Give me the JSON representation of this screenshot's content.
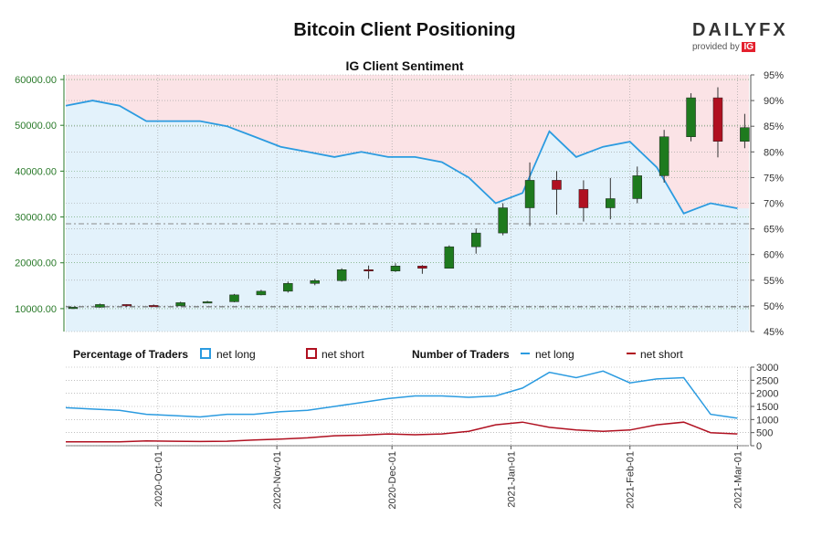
{
  "title": "Bitcoin Client Positioning",
  "subtitle": "IG Client Sentiment",
  "logo": {
    "word_left": "DAILY",
    "word_right": "FX",
    "provided_by": "provided by",
    "brand": "IG"
  },
  "colors": {
    "net_long": "#2b9be0",
    "net_short": "#b01020",
    "long_fill": "#e3f2fb",
    "short_fill": "#fbe3e6",
    "price_axis": "#2a7a2a",
    "candle_up": "#1e7a1e",
    "candle_down": "#b01020"
  },
  "legend": {
    "pct_heading": "Percentage of Traders",
    "pct_long": "net long",
    "pct_short": "net short",
    "num_heading": "Number of Traders",
    "num_long": "net long",
    "num_short": "net short"
  },
  "chart_data": [
    {
      "type": "candlestick",
      "name": "price",
      "x_tick_labels": [
        "2020-Oct-01",
        "2020-Nov-01",
        "2020-Dec-01",
        "2021-Jan-01",
        "2021-Feb-01",
        "2021-Mar-01"
      ],
      "x_range": [
        "2020-09-07",
        "2021-03-04"
      ],
      "left_axis": {
        "ticks": [
          "10000.00",
          "20000.00",
          "30000.00",
          "40000.00",
          "50000.00",
          "60000.00"
        ],
        "ylim": [
          5000,
          61000
        ]
      },
      "right_axis": {
        "ticks": [
          "45%",
          "50%",
          "55%",
          "60%",
          "65%",
          "70%",
          "75%",
          "80%",
          "85%",
          "90%",
          "95%"
        ],
        "ylim": [
          45,
          95
        ]
      },
      "reference_lines": {
        "price_level": 10400,
        "sentiment_level": 66
      },
      "candles": [
        {
          "date": "2020-09-07",
          "o": 10200,
          "h": 10400,
          "l": 9900,
          "c": 10300
        },
        {
          "date": "2020-09-14",
          "o": 10300,
          "h": 11100,
          "l": 10200,
          "c": 10900
        },
        {
          "date": "2020-09-21",
          "o": 10900,
          "h": 10950,
          "l": 10400,
          "c": 10700
        },
        {
          "date": "2020-09-28",
          "o": 10700,
          "h": 10900,
          "l": 10500,
          "c": 10600
        },
        {
          "date": "2020-10-05",
          "o": 10600,
          "h": 11500,
          "l": 10550,
          "c": 11300
        },
        {
          "date": "2020-10-12",
          "o": 11300,
          "h": 11700,
          "l": 11200,
          "c": 11500
        },
        {
          "date": "2020-10-19",
          "o": 11500,
          "h": 13200,
          "l": 11400,
          "c": 13000
        },
        {
          "date": "2020-10-26",
          "o": 13000,
          "h": 14100,
          "l": 12900,
          "c": 13800
        },
        {
          "date": "2020-11-02",
          "o": 13800,
          "h": 15900,
          "l": 13500,
          "c": 15500
        },
        {
          "date": "2020-11-09",
          "o": 15500,
          "h": 16500,
          "l": 15100,
          "c": 16100
        },
        {
          "date": "2020-11-16",
          "o": 16100,
          "h": 18800,
          "l": 15900,
          "c": 18500
        },
        {
          "date": "2020-11-23",
          "o": 18500,
          "h": 19400,
          "l": 16500,
          "c": 18200
        },
        {
          "date": "2020-11-30",
          "o": 18200,
          "h": 19900,
          "l": 18000,
          "c": 19300
        },
        {
          "date": "2020-12-07",
          "o": 19300,
          "h": 19500,
          "l": 17600,
          "c": 18800
        },
        {
          "date": "2020-12-14",
          "o": 18800,
          "h": 23800,
          "l": 18800,
          "c": 23500
        },
        {
          "date": "2020-12-21",
          "o": 23500,
          "h": 27500,
          "l": 22000,
          "c": 26500
        },
        {
          "date": "2020-12-28",
          "o": 26500,
          "h": 33000,
          "l": 26000,
          "c": 32000
        },
        {
          "date": "2021-01-04",
          "o": 32000,
          "h": 41900,
          "l": 28000,
          "c": 38000
        },
        {
          "date": "2021-01-11",
          "o": 38000,
          "h": 40000,
          "l": 30500,
          "c": 36000
        },
        {
          "date": "2021-01-18",
          "o": 36000,
          "h": 38000,
          "l": 29000,
          "c": 32000
        },
        {
          "date": "2021-01-25",
          "o": 32000,
          "h": 38500,
          "l": 29500,
          "c": 34000
        },
        {
          "date": "2021-02-01",
          "o": 34000,
          "h": 41000,
          "l": 33000,
          "c": 39000
        },
        {
          "date": "2021-02-08",
          "o": 39000,
          "h": 49000,
          "l": 37500,
          "c": 47500
        },
        {
          "date": "2021-02-15",
          "o": 47500,
          "h": 57000,
          "l": 46500,
          "c": 56000
        },
        {
          "date": "2021-02-22",
          "o": 56000,
          "h": 58300,
          "l": 43000,
          "c": 46500
        },
        {
          "date": "2021-03-01",
          "o": 46500,
          "h": 52500,
          "l": 45000,
          "c": 49500
        }
      ],
      "net_long_pct": [
        {
          "date": "2020-09-07",
          "v": 89
        },
        {
          "date": "2020-09-14",
          "v": 90
        },
        {
          "date": "2020-09-21",
          "v": 89
        },
        {
          "date": "2020-09-28",
          "v": 86
        },
        {
          "date": "2020-10-05",
          "v": 86
        },
        {
          "date": "2020-10-12",
          "v": 86
        },
        {
          "date": "2020-10-19",
          "v": 85
        },
        {
          "date": "2020-10-26",
          "v": 83
        },
        {
          "date": "2020-11-02",
          "v": 81
        },
        {
          "date": "2020-11-09",
          "v": 80
        },
        {
          "date": "2020-11-16",
          "v": 79
        },
        {
          "date": "2020-11-23",
          "v": 80
        },
        {
          "date": "2020-11-30",
          "v": 79
        },
        {
          "date": "2020-12-07",
          "v": 79
        },
        {
          "date": "2020-12-14",
          "v": 78
        },
        {
          "date": "2020-12-21",
          "v": 75
        },
        {
          "date": "2020-12-28",
          "v": 70
        },
        {
          "date": "2021-01-04",
          "v": 72
        },
        {
          "date": "2021-01-11",
          "v": 84
        },
        {
          "date": "2021-01-18",
          "v": 79
        },
        {
          "date": "2021-01-25",
          "v": 81
        },
        {
          "date": "2021-02-01",
          "v": 82
        },
        {
          "date": "2021-02-08",
          "v": 77
        },
        {
          "date": "2021-02-15",
          "v": 68
        },
        {
          "date": "2021-02-22",
          "v": 70
        },
        {
          "date": "2021-03-01",
          "v": 69
        }
      ]
    },
    {
      "type": "line",
      "name": "number_of_traders",
      "x_tick_labels": [
        "2020-Oct-01",
        "2020-Nov-01",
        "2020-Dec-01",
        "2021-Jan-01",
        "2021-Feb-01",
        "2021-Mar-01"
      ],
      "y_ticks": [
        "0",
        "500",
        "1000",
        "1500",
        "2000",
        "2500",
        "3000"
      ],
      "ylim": [
        0,
        3000
      ],
      "series": [
        {
          "name": "net long",
          "values": [
            {
              "date": "2020-09-07",
              "v": 1450
            },
            {
              "date": "2020-09-14",
              "v": 1400
            },
            {
              "date": "2020-09-21",
              "v": 1350
            },
            {
              "date": "2020-09-28",
              "v": 1200
            },
            {
              "date": "2020-10-05",
              "v": 1150
            },
            {
              "date": "2020-10-12",
              "v": 1100
            },
            {
              "date": "2020-10-19",
              "v": 1200
            },
            {
              "date": "2020-10-26",
              "v": 1200
            },
            {
              "date": "2020-11-02",
              "v": 1300
            },
            {
              "date": "2020-11-09",
              "v": 1350
            },
            {
              "date": "2020-11-16",
              "v": 1500
            },
            {
              "date": "2020-11-23",
              "v": 1650
            },
            {
              "date": "2020-11-30",
              "v": 1800
            },
            {
              "date": "2020-12-07",
              "v": 1900
            },
            {
              "date": "2020-12-14",
              "v": 1900
            },
            {
              "date": "2020-12-21",
              "v": 1850
            },
            {
              "date": "2020-12-28",
              "v": 1900
            },
            {
              "date": "2021-01-04",
              "v": 2200
            },
            {
              "date": "2021-01-11",
              "v": 2800
            },
            {
              "date": "2021-01-18",
              "v": 2600
            },
            {
              "date": "2021-01-25",
              "v": 2850
            },
            {
              "date": "2021-02-01",
              "v": 2400
            },
            {
              "date": "2021-02-08",
              "v": 2550
            },
            {
              "date": "2021-02-15",
              "v": 2600
            },
            {
              "date": "2021-02-22",
              "v": 1200
            },
            {
              "date": "2021-03-01",
              "v": 1050
            }
          ]
        },
        {
          "name": "net short",
          "values": [
            {
              "date": "2020-09-07",
              "v": 150
            },
            {
              "date": "2020-09-14",
              "v": 150
            },
            {
              "date": "2020-09-21",
              "v": 150
            },
            {
              "date": "2020-09-28",
              "v": 180
            },
            {
              "date": "2020-10-05",
              "v": 170
            },
            {
              "date": "2020-10-12",
              "v": 160
            },
            {
              "date": "2020-10-19",
              "v": 170
            },
            {
              "date": "2020-10-26",
              "v": 220
            },
            {
              "date": "2020-11-02",
              "v": 250
            },
            {
              "date": "2020-11-09",
              "v": 300
            },
            {
              "date": "2020-11-16",
              "v": 380
            },
            {
              "date": "2020-11-23",
              "v": 400
            },
            {
              "date": "2020-11-30",
              "v": 450
            },
            {
              "date": "2020-12-07",
              "v": 420
            },
            {
              "date": "2020-12-14",
              "v": 450
            },
            {
              "date": "2020-12-21",
              "v": 550
            },
            {
              "date": "2020-12-28",
              "v": 800
            },
            {
              "date": "2021-01-04",
              "v": 900
            },
            {
              "date": "2021-01-11",
              "v": 700
            },
            {
              "date": "2021-01-18",
              "v": 600
            },
            {
              "date": "2021-01-25",
              "v": 550
            },
            {
              "date": "2021-02-01",
              "v": 600
            },
            {
              "date": "2021-02-08",
              "v": 800
            },
            {
              "date": "2021-02-15",
              "v": 900
            },
            {
              "date": "2021-02-22",
              "v": 500
            },
            {
              "date": "2021-03-01",
              "v": 450
            }
          ]
        }
      ]
    }
  ]
}
